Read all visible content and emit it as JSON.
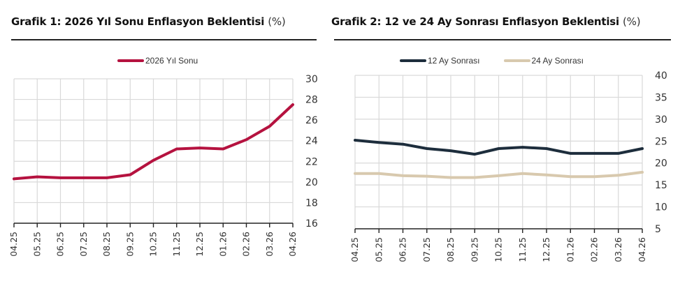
{
  "chart1": {
    "title": "Grafik 1: 2026 Yıl Sonu Enflasyon Beklentisi",
    "unit": "(%)",
    "legend": [
      "2026 Yıl Sonu"
    ]
  },
  "chart2": {
    "title": "Grafik 2: 12 ve 24 Ay Sonrası Enflasyon Beklentisi",
    "unit": "(%)",
    "legend": [
      "12 Ay Sonrası",
      "24 Ay Sonrası"
    ]
  },
  "chart_data": [
    {
      "type": "line",
      "title": "Grafik 1: 2026 Yıl Sonu Enflasyon Beklentisi (%)",
      "xlabel": "",
      "ylabel": "%",
      "categories": [
        "04.25",
        "05.25",
        "06.25",
        "07.25",
        "08.25",
        "09.25",
        "10.25",
        "11.25",
        "12.25",
        "01.26",
        "02.26",
        "03.26",
        "04.26"
      ],
      "series": [
        {
          "name": "2026 Yıl Sonu",
          "color": "#b5123f",
          "values": [
            20.3,
            20.5,
            20.4,
            20.4,
            20.4,
            20.7,
            22.1,
            23.2,
            23.3,
            23.2,
            24.1,
            25.4,
            27.5
          ]
        }
      ],
      "ylim": [
        16,
        30
      ],
      "yticks": [
        16,
        18,
        20,
        22,
        24,
        26,
        28,
        30
      ],
      "y_axis_position": "right",
      "grid": true,
      "legend_position": "top"
    },
    {
      "type": "line",
      "title": "Grafik 2: 12 ve 24 Ay Sonrası Enflasyon Beklentisi (%)",
      "xlabel": "",
      "ylabel": "%",
      "categories": [
        "04.25",
        "05.25",
        "06.25",
        "07.25",
        "08.25",
        "09.25",
        "10.25",
        "11.25",
        "12.25",
        "01.26",
        "02.26",
        "03.26",
        "04.26"
      ],
      "series": [
        {
          "name": "12 Ay Sonrası",
          "color": "#1d2d3c",
          "values": [
            25.2,
            24.7,
            24.3,
            23.3,
            22.8,
            22.0,
            23.3,
            23.6,
            23.3,
            22.2,
            22.2,
            22.2,
            23.3
          ]
        },
        {
          "name": "24 Ay Sonrası",
          "color": "#d8c9ae",
          "values": [
            17.6,
            17.6,
            17.1,
            17.0,
            16.7,
            16.7,
            17.1,
            17.6,
            17.3,
            16.9,
            16.9,
            17.2,
            17.9
          ]
        }
      ],
      "ylim": [
        5,
        40
      ],
      "yticks": [
        5,
        10,
        15,
        20,
        25,
        30,
        35,
        40
      ],
      "y_axis_position": "right",
      "grid": true,
      "legend_position": "top"
    }
  ]
}
